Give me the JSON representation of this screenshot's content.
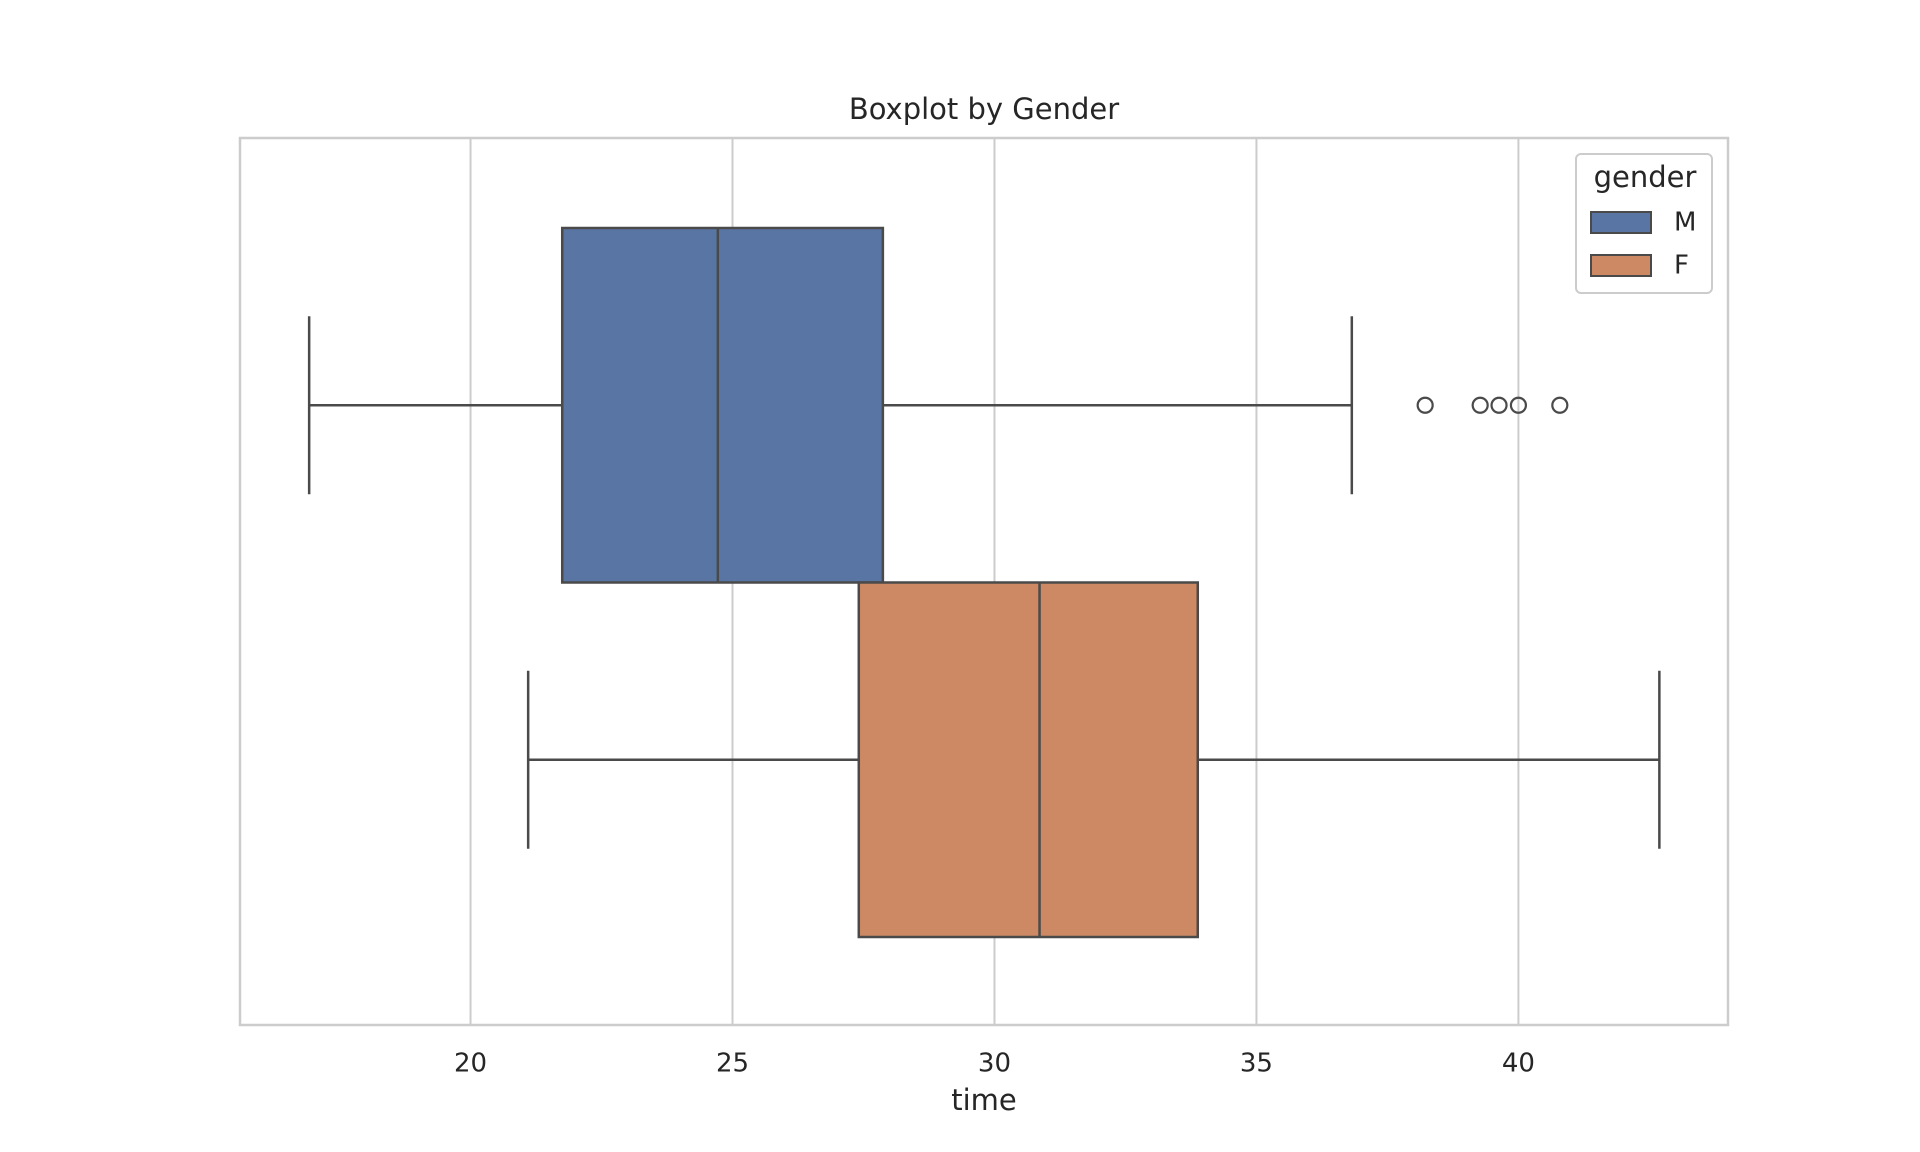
{
  "chart_data": {
    "type": "box",
    "title": "Boxplot by Gender",
    "x_label": "time",
    "xlim": [
      15.6,
      44.0
    ],
    "xticks": [
      20,
      25,
      30,
      35,
      40
    ],
    "grid": true,
    "legend_title": "gender",
    "legend_position": "upper right",
    "series": [
      {
        "name": "M",
        "color": "#5975a4",
        "whisker_low": 16.92,
        "q1": 21.75,
        "median": 24.72,
        "q3": 27.87,
        "whisker_high": 36.82,
        "outliers": [
          38.22,
          39.27,
          39.63,
          40.0,
          40.79
        ]
      },
      {
        "name": "F",
        "color": "#cc8963",
        "whisker_low": 21.1,
        "q1": 27.41,
        "median": 30.86,
        "q3": 33.88,
        "whisker_high": 42.69,
        "outliers": []
      }
    ]
  }
}
